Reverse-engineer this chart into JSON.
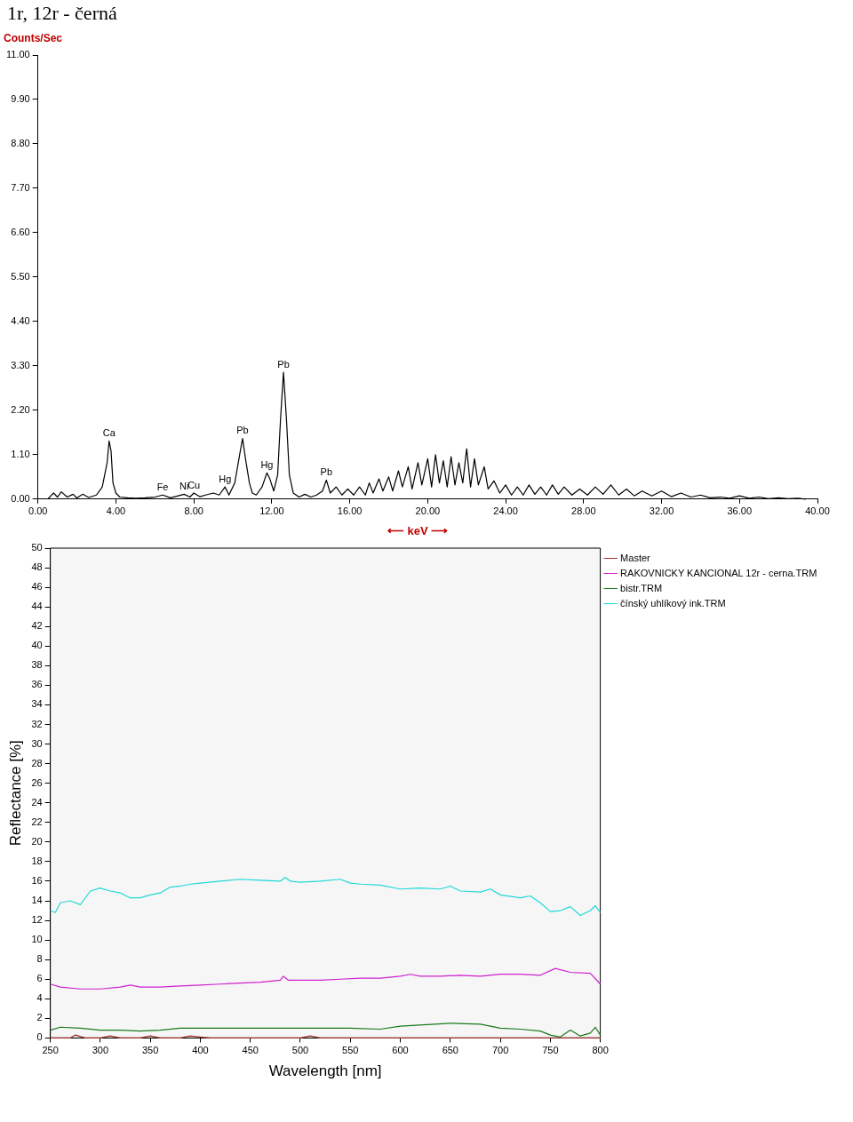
{
  "chart_data": [
    {
      "type": "line",
      "title": "1r, 12r - černá",
      "ylabel": "Counts/Sec",
      "xlabel": "⟵ keV ⟶",
      "xlim": [
        0,
        40
      ],
      "ylim": [
        0,
        11
      ],
      "xticks": [
        {
          "value": 0,
          "label": "0.00"
        },
        {
          "value": 4,
          "label": "4.00"
        },
        {
          "value": 8,
          "label": "8.00"
        },
        {
          "value": 12,
          "label": "12.00"
        },
        {
          "value": 16,
          "label": "16.00"
        },
        {
          "value": 20,
          "label": "20.00"
        },
        {
          "value": 24,
          "label": "24.00"
        },
        {
          "value": 28,
          "label": "28.00"
        },
        {
          "value": 32,
          "label": "32.00"
        },
        {
          "value": 36,
          "label": "36.00"
        },
        {
          "value": 40,
          "label": "40.00"
        }
      ],
      "yticks": [
        {
          "value": 0,
          "label": "0.00"
        },
        {
          "value": 1.1,
          "label": "1.10"
        },
        {
          "value": 2.2,
          "label": "2.20"
        },
        {
          "value": 3.3,
          "label": "3.30"
        },
        {
          "value": 4.4,
          "label": "4.40"
        },
        {
          "value": 5.5,
          "label": "5.50"
        },
        {
          "value": 6.6,
          "label": "6.60"
        },
        {
          "value": 7.7,
          "label": "7.70"
        },
        {
          "value": 8.8,
          "label": "8.80"
        },
        {
          "value": 9.9,
          "label": "9.90"
        },
        {
          "value": 11,
          "label": "11.00"
        }
      ],
      "annotations": [
        {
          "text": "Ca",
          "x": 3.65,
          "y": 1.44
        },
        {
          "text": "Fe",
          "x": 6.4,
          "y": 0.1
        },
        {
          "text": "Ni",
          "x": 7.5,
          "y": 0.12
        },
        {
          "text": "Cu",
          "x": 8.0,
          "y": 0.15
        },
        {
          "text": "Hg",
          "x": 9.6,
          "y": 0.3
        },
        {
          "text": "Pb",
          "x": 10.5,
          "y": 1.5
        },
        {
          "text": "Hg",
          "x": 11.75,
          "y": 0.65
        },
        {
          "text": "Pb",
          "x": 12.6,
          "y": 3.14
        },
        {
          "text": "Pb",
          "x": 14.8,
          "y": 0.47
        }
      ],
      "series": [
        {
          "color": "#000000",
          "x": [
            0.5,
            0.8,
            1.0,
            1.2,
            1.5,
            1.8,
            2.0,
            2.3,
            2.6,
            3.0,
            3.3,
            3.55,
            3.65,
            3.75,
            3.85,
            4.0,
            4.2,
            4.6,
            5.0,
            5.5,
            6.0,
            6.4,
            6.8,
            7.2,
            7.5,
            7.8,
            8.0,
            8.3,
            8.6,
            9.0,
            9.3,
            9.6,
            9.8,
            10.1,
            10.35,
            10.5,
            10.65,
            10.85,
            11.0,
            11.2,
            11.5,
            11.75,
            11.9,
            12.1,
            12.3,
            12.45,
            12.6,
            12.75,
            12.9,
            13.1,
            13.4,
            13.7,
            14.0,
            14.3,
            14.6,
            14.8,
            15.0,
            15.3,
            15.6,
            15.9,
            16.2,
            16.5,
            16.8,
            17.0,
            17.2,
            17.5,
            17.7,
            18.0,
            18.2,
            18.5,
            18.7,
            19.0,
            19.2,
            19.5,
            19.7,
            20.0,
            20.2,
            20.4,
            20.6,
            20.8,
            21.0,
            21.2,
            21.4,
            21.6,
            21.8,
            22.0,
            22.2,
            22.4,
            22.6,
            22.9,
            23.1,
            23.4,
            23.7,
            24.0,
            24.3,
            24.6,
            24.9,
            25.2,
            25.5,
            25.8,
            26.1,
            26.4,
            26.7,
            27.0,
            27.4,
            27.8,
            28.2,
            28.6,
            29.0,
            29.4,
            29.8,
            30.2,
            30.6,
            31.0,
            31.5,
            32.0,
            32.5,
            33.0,
            33.5,
            34.0,
            34.5,
            35.0,
            35.5,
            36.0,
            36.5,
            37.0,
            37.5,
            38.0,
            38.5,
            39.0,
            39.4
          ],
          "values": [
            0,
            0.15,
            0.05,
            0.18,
            0.05,
            0.12,
            0.03,
            0.12,
            0.04,
            0.1,
            0.3,
            0.9,
            1.44,
            1.2,
            0.4,
            0.15,
            0.05,
            0.03,
            0.02,
            0.03,
            0.05,
            0.1,
            0.03,
            0.08,
            0.12,
            0.05,
            0.15,
            0.06,
            0.1,
            0.15,
            0.1,
            0.3,
            0.1,
            0.4,
            1.1,
            1.5,
            1.0,
            0.4,
            0.15,
            0.1,
            0.3,
            0.65,
            0.5,
            0.2,
            0.6,
            2.0,
            3.14,
            2.0,
            0.6,
            0.15,
            0.05,
            0.12,
            0.05,
            0.1,
            0.2,
            0.47,
            0.15,
            0.3,
            0.1,
            0.25,
            0.1,
            0.3,
            0.1,
            0.4,
            0.15,
            0.5,
            0.2,
            0.55,
            0.2,
            0.7,
            0.3,
            0.8,
            0.25,
            0.9,
            0.35,
            1.0,
            0.3,
            1.1,
            0.4,
            0.95,
            0.3,
            1.05,
            0.35,
            0.9,
            0.4,
            1.25,
            0.3,
            1.0,
            0.35,
            0.8,
            0.25,
            0.45,
            0.15,
            0.35,
            0.1,
            0.3,
            0.1,
            0.35,
            0.12,
            0.3,
            0.1,
            0.35,
            0.12,
            0.3,
            0.1,
            0.25,
            0.1,
            0.3,
            0.12,
            0.35,
            0.1,
            0.25,
            0.08,
            0.2,
            0.08,
            0.2,
            0.06,
            0.15,
            0.05,
            0.1,
            0.03,
            0.05,
            0.02,
            0.08,
            0.02,
            0.05,
            0.01,
            0.03,
            0.01,
            0.02,
            0
          ]
        }
      ]
    },
    {
      "type": "line",
      "xlabel": "Wavelength [nm]",
      "ylabel": "Reflectance [%]",
      "legend": "top right",
      "xlim": [
        250,
        800
      ],
      "ylim": [
        0,
        50
      ],
      "xticks": [
        250,
        300,
        350,
        400,
        450,
        500,
        550,
        600,
        650,
        700,
        750,
        800
      ],
      "yticks": [
        0,
        2,
        4,
        6,
        8,
        10,
        12,
        14,
        16,
        18,
        20,
        22,
        24,
        26,
        28,
        30,
        32,
        34,
        36,
        38,
        40,
        42,
        44,
        46,
        48,
        50
      ],
      "series": [
        {
          "name": "Master",
          "color": "#a0302a",
          "x": [
            250,
            270,
            275,
            285,
            300,
            310,
            320,
            340,
            350,
            360,
            380,
            390,
            400,
            410,
            500,
            510,
            520,
            800
          ],
          "values": [
            0,
            0,
            0.3,
            0,
            0,
            0.2,
            0,
            0,
            0.2,
            0,
            0,
            0.2,
            0.1,
            0,
            0,
            0.2,
            0,
            0
          ]
        },
        {
          "name": "RAKOVNICKY KANCIONAL 12r - cerna.TRM",
          "color": "#d020d0",
          "x": [
            250,
            260,
            280,
            300,
            320,
            330,
            340,
            360,
            380,
            400,
            420,
            440,
            460,
            480,
            483,
            488,
            500,
            520,
            540,
            560,
            580,
            600,
            610,
            620,
            640,
            660,
            680,
            700,
            720,
            740,
            755,
            770,
            790,
            800
          ],
          "values": [
            5.5,
            5.2,
            5.0,
            5.0,
            5.2,
            5.4,
            5.2,
            5.2,
            5.3,
            5.4,
            5.5,
            5.6,
            5.7,
            5.9,
            6.3,
            5.9,
            5.9,
            5.9,
            6.0,
            6.1,
            6.1,
            6.3,
            6.5,
            6.3,
            6.3,
            6.4,
            6.3,
            6.5,
            6.5,
            6.4,
            7.1,
            6.7,
            6.6,
            5.5
          ]
        },
        {
          "name": "bistr.TRM",
          "color": "#1a7a1a",
          "x": [
            250,
            260,
            280,
            300,
            320,
            340,
            360,
            380,
            400,
            450,
            500,
            550,
            580,
            600,
            650,
            680,
            700,
            720,
            740,
            750,
            760,
            770,
            780,
            790,
            795,
            800
          ],
          "values": [
            0.8,
            1.1,
            1.0,
            0.8,
            0.8,
            0.7,
            0.8,
            1.0,
            1.0,
            1.0,
            1.0,
            1.0,
            0.9,
            1.2,
            1.5,
            1.4,
            1.0,
            0.9,
            0.7,
            0.3,
            0.1,
            0.8,
            0.2,
            0.5,
            1.1,
            0.3
          ]
        },
        {
          "name": "čínský uhlíkový ink.TRM",
          "color": "#20d8d8",
          "x": [
            250,
            255,
            260,
            270,
            280,
            290,
            300,
            310,
            320,
            330,
            340,
            350,
            360,
            370,
            380,
            390,
            400,
            420,
            440,
            460,
            480,
            485,
            490,
            500,
            520,
            540,
            550,
            560,
            580,
            600,
            620,
            640,
            650,
            660,
            680,
            690,
            700,
            720,
            730,
            740,
            750,
            760,
            770,
            780,
            790,
            795,
            800
          ],
          "values": [
            13.0,
            12.8,
            13.8,
            14.0,
            13.6,
            15.0,
            15.3,
            15.0,
            14.8,
            14.3,
            14.3,
            14.6,
            14.8,
            15.4,
            15.5,
            15.7,
            15.8,
            16.0,
            16.2,
            16.1,
            16.0,
            16.4,
            16.0,
            15.9,
            16.0,
            16.2,
            15.8,
            15.7,
            15.6,
            15.2,
            15.3,
            15.2,
            15.5,
            15.0,
            14.9,
            15.2,
            14.6,
            14.3,
            14.5,
            13.8,
            12.9,
            13.0,
            13.4,
            12.5,
            13.0,
            13.5,
            12.8
          ]
        }
      ]
    }
  ]
}
